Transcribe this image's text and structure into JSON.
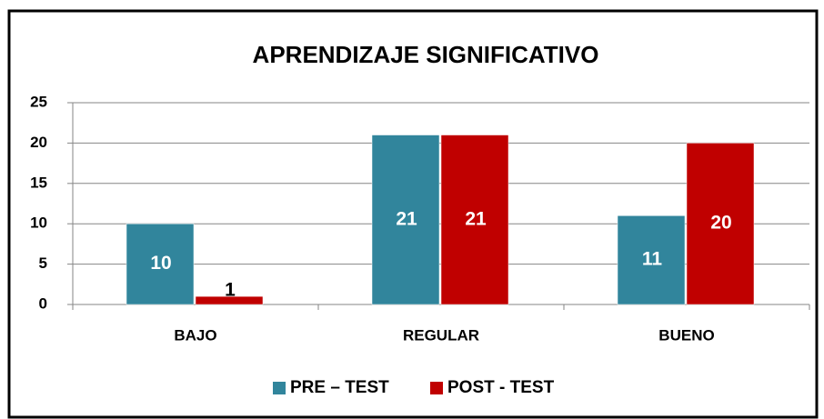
{
  "chart_data": {
    "type": "bar",
    "title": "APRENDIZAJE SIGNIFICATIVO",
    "categories": [
      "BAJO",
      "REGULAR",
      "BUENO"
    ],
    "series": [
      {
        "name": "PRE – TEST",
        "color": "#31859c",
        "values": [
          10,
          21,
          11
        ]
      },
      {
        "name": "POST - TEST",
        "color": "#c00000",
        "values": [
          1,
          21,
          20
        ]
      }
    ],
    "ylim": [
      0,
      25
    ],
    "yticks": [
      0,
      5,
      10,
      15,
      20,
      25
    ],
    "grid": true,
    "legend": "bottom"
  }
}
